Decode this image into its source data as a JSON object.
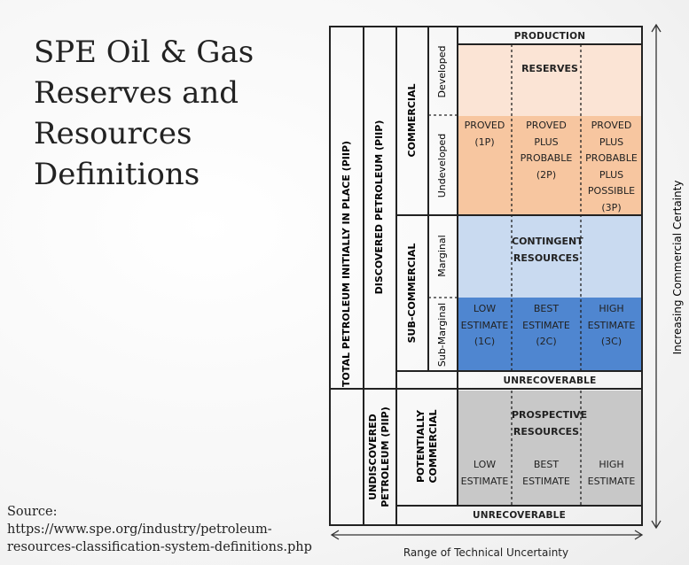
{
  "slide": {
    "title_lines": [
      "SPE Oil & Gas",
      "Reserves and",
      "Resources",
      "Definitions"
    ],
    "source_label": "Source:",
    "source_url_lines": [
      "https://www.spe.org/industry/petroleum-",
      "resources-classification-system-definitions.php"
    ]
  },
  "diagram": {
    "col1_total": "TOTAL PETROLEUM INITIALLY IN PLACE (PIIP)",
    "col1_undiscovered": "UNDISCOVERED\nPETROLEUM (PIIP)",
    "col2_discovered": "DISCOVERED PETROLEUM (PIIP)",
    "col2_potentially": "POTENTIALLY\nCOMMERCIAL",
    "col3_commercial": "COMMERCIAL",
    "col3_subcommercial": "SUB-COMMERCIAL",
    "col4_developed": "Developed",
    "col4_undeveloped": "Undeveloped",
    "col4_marginal": "Marginal",
    "col4_submarginal": "Sub-Marginal",
    "production": "PRODUCTION",
    "reserves": "RESERVES",
    "proved_1p": "PROVED\n(1P)",
    "proved_2p": "PROVED\nPLUS\nPROBABLE\n(2P)",
    "proved_3p": "PROVED\nPLUS\nPROBABLE\nPLUS\nPOSSIBLE\n(3P)",
    "contingent": "CONTINGENT\nRESOURCES",
    "low_1c": "LOW\nESTIMATE\n(1C)",
    "best_2c": "BEST\nESTIMATE\n(2C)",
    "high_3c": "HIGH\nESTIMATE\n(3C)",
    "unrecoverable_1": "UNRECOVERABLE",
    "prospective": "PROSPECTIVE\nRESOURCES",
    "low_est": "LOW\nESTIMATE",
    "best_est": "BEST\nESTIMATE",
    "high_est": "HIGH\nESTIMATE",
    "unrecoverable_2": "UNRECOVERABLE",
    "axis_x": "Range of Technical Uncertainty",
    "axis_y": "Increasing Commercial Certainty",
    "colors": {
      "reserves_light": "#fbe4d5",
      "reserves_dark": "#f7c6a0",
      "contingent_light": "#c9daf0",
      "contingent_dark": "#4f86d0",
      "prospective": "#c8c8c8"
    }
  }
}
